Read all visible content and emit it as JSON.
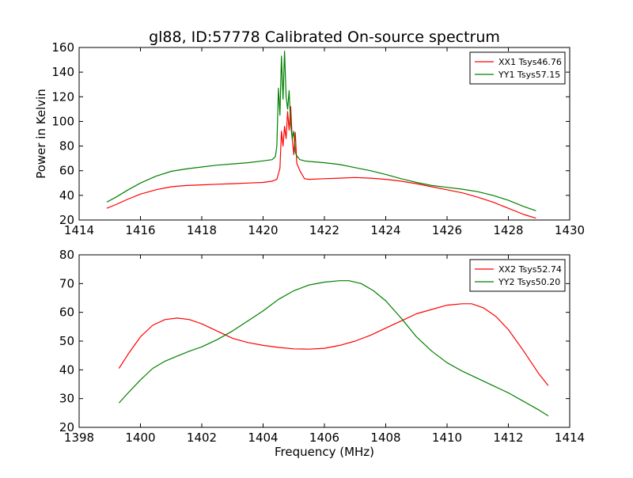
{
  "figure": {
    "title": "gl88, ID:57778 Calibrated On-source spectrum",
    "xlabel": "Frequency (MHz)"
  },
  "chart_data": [
    {
      "type": "line",
      "title": "gl88, ID:57778 Calibrated On-source spectrum",
      "xlabel": "",
      "ylabel": "Power in Kelvin",
      "xlim": [
        1414,
        1430
      ],
      "ylim": [
        20,
        160
      ],
      "xticks": [
        1414,
        1416,
        1418,
        1420,
        1422,
        1424,
        1426,
        1428,
        1430
      ],
      "yticks": [
        20,
        40,
        60,
        80,
        100,
        120,
        140,
        160
      ],
      "grid": false,
      "legend_position": "top-right",
      "series": [
        {
          "name": "XX1 Tsys46.76",
          "color": "#ff0000",
          "x": [
            1414.9,
            1415.2,
            1415.6,
            1416.0,
            1416.5,
            1417.0,
            1417.5,
            1418.0,
            1418.5,
            1419.0,
            1419.5,
            1420.0,
            1420.3,
            1420.45,
            1420.55,
            1420.6,
            1420.65,
            1420.7,
            1420.75,
            1420.8,
            1420.85,
            1420.9,
            1420.95,
            1421.0,
            1421.05,
            1421.1,
            1421.2,
            1421.35,
            1421.5,
            1422.0,
            1422.5,
            1423.0,
            1423.5,
            1424.0,
            1424.5,
            1425.0,
            1425.5,
            1426.0,
            1426.5,
            1427.0,
            1427.5,
            1428.0,
            1428.5,
            1428.9
          ],
          "y": [
            29.5,
            32.5,
            37.0,
            41.0,
            44.5,
            47.0,
            48.0,
            48.5,
            49.0,
            49.5,
            50.0,
            50.5,
            51.5,
            53.0,
            62.0,
            92.0,
            80.0,
            96.0,
            86.0,
            108.0,
            93.0,
            112.0,
            86.0,
            73.0,
            91.0,
            66.0,
            60.0,
            53.5,
            53.0,
            53.5,
            54.0,
            54.5,
            54.0,
            53.0,
            51.5,
            49.5,
            47.0,
            44.5,
            42.0,
            38.5,
            34.5,
            29.5,
            24.5,
            21.5
          ]
        },
        {
          "name": "YY1 Tsys57.15",
          "color": "#008000",
          "x": [
            1414.9,
            1415.2,
            1415.6,
            1416.0,
            1416.5,
            1417.0,
            1417.5,
            1418.0,
            1418.5,
            1419.0,
            1419.5,
            1420.0,
            1420.3,
            1420.4,
            1420.45,
            1420.5,
            1420.55,
            1420.6,
            1420.65,
            1420.7,
            1420.75,
            1420.8,
            1420.85,
            1420.9,
            1420.95,
            1421.0,
            1421.05,
            1421.1,
            1421.2,
            1421.35,
            1421.5,
            1422.0,
            1422.5,
            1423.0,
            1423.5,
            1424.0,
            1424.5,
            1425.0,
            1425.5,
            1426.0,
            1426.5,
            1427.0,
            1427.5,
            1428.0,
            1428.5,
            1428.9
          ],
          "y": [
            34.5,
            38.5,
            44.5,
            50.0,
            55.5,
            59.5,
            61.5,
            63.0,
            64.5,
            65.5,
            66.5,
            68.0,
            69.0,
            71.5,
            80.0,
            127.0,
            105.0,
            153.0,
            118.0,
            157.0,
            120.0,
            110.0,
            125.0,
            97.0,
            86.0,
            92.0,
            75.0,
            72.0,
            69.0,
            68.0,
            67.5,
            66.5,
            65.0,
            62.5,
            60.0,
            57.0,
            53.5,
            50.5,
            48.0,
            46.5,
            45.0,
            43.0,
            40.0,
            36.0,
            31.0,
            27.5
          ]
        }
      ]
    },
    {
      "type": "line",
      "title": "",
      "xlabel": "Frequency (MHz)",
      "ylabel": "",
      "xlim": [
        1398,
        1414
      ],
      "ylim": [
        20,
        80
      ],
      "xticks": [
        1398,
        1400,
        1402,
        1404,
        1406,
        1408,
        1410,
        1412,
        1414
      ],
      "yticks": [
        20,
        30,
        40,
        50,
        60,
        70,
        80
      ],
      "grid": false,
      "legend_position": "top-right",
      "series": [
        {
          "name": "XX2 Tsys52.74",
          "color": "#ff0000",
          "x": [
            1399.3,
            1399.6,
            1400.0,
            1400.4,
            1400.8,
            1401.2,
            1401.6,
            1402.0,
            1402.5,
            1403.0,
            1403.5,
            1404.0,
            1404.5,
            1405.0,
            1405.5,
            1406.0,
            1406.5,
            1407.0,
            1407.5,
            1408.0,
            1408.5,
            1409.0,
            1409.5,
            1410.0,
            1410.5,
            1410.8,
            1411.2,
            1411.6,
            1412.0,
            1412.5,
            1413.0,
            1413.3
          ],
          "y": [
            40.5,
            45.5,
            51.5,
            55.5,
            57.5,
            58.0,
            57.5,
            56.0,
            53.5,
            51.0,
            49.5,
            48.5,
            47.8,
            47.3,
            47.2,
            47.5,
            48.5,
            50.0,
            52.0,
            54.5,
            57.0,
            59.5,
            61.0,
            62.5,
            63.0,
            63.0,
            61.5,
            58.5,
            54.0,
            46.5,
            38.5,
            34.5
          ]
        },
        {
          "name": "YY2 Tsys50.20",
          "color": "#008000",
          "x": [
            1399.3,
            1399.6,
            1400.0,
            1400.4,
            1400.8,
            1401.2,
            1401.6,
            1402.0,
            1402.5,
            1403.0,
            1403.5,
            1404.0,
            1404.5,
            1405.0,
            1405.5,
            1406.0,
            1406.5,
            1406.8,
            1407.2,
            1407.6,
            1408.0,
            1408.5,
            1409.0,
            1409.5,
            1410.0,
            1410.5,
            1411.0,
            1411.5,
            1412.0,
            1412.5,
            1413.0,
            1413.3
          ],
          "y": [
            28.5,
            32.0,
            36.5,
            40.5,
            43.0,
            44.8,
            46.5,
            48.0,
            50.5,
            53.5,
            57.0,
            60.5,
            64.5,
            67.5,
            69.5,
            70.5,
            71.0,
            71.0,
            70.0,
            67.5,
            64.0,
            58.0,
            51.5,
            46.5,
            42.5,
            39.5,
            37.0,
            34.5,
            32.0,
            29.0,
            26.0,
            24.0
          ]
        }
      ]
    }
  ]
}
